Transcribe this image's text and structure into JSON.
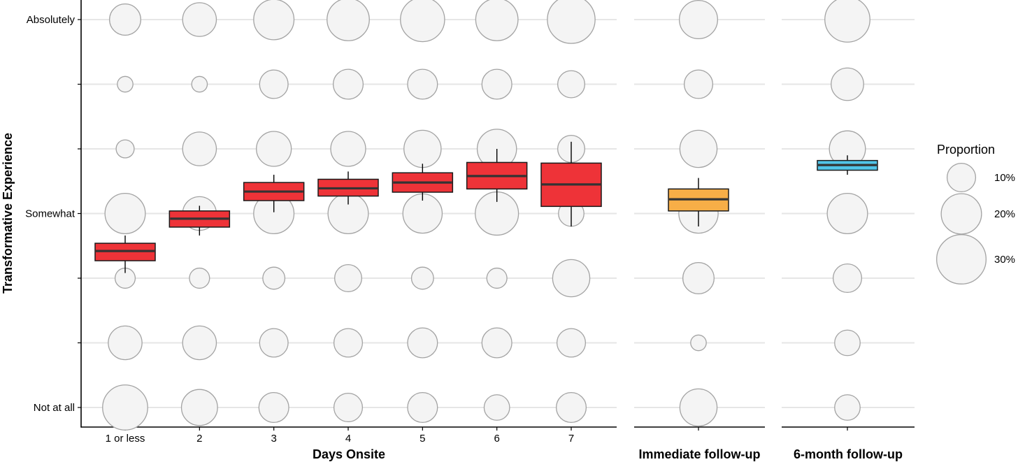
{
  "chart_data": {
    "type": "bubble-box",
    "ylabel": "Transformative Experience",
    "y_levels": 7,
    "y_tick_labels": {
      "1": "Not at all",
      "4": "Somewhat",
      "7": "Absolutely"
    },
    "legend": {
      "title": "Proportion",
      "entries": [
        {
          "label": "10%",
          "value": 10
        },
        {
          "label": "20%",
          "value": 20
        },
        {
          "label": "30%",
          "value": 30
        }
      ]
    },
    "panels": [
      {
        "id": "days",
        "xlabel": "Days Onsite",
        "box_color": "#ee3338",
        "categories": [
          {
            "label": "1 or less",
            "bubbles": [
              25,
              14,
              5,
              20,
              4,
              3,
              12
            ],
            "box": {
              "q1": 3.27,
              "median": 3.42,
              "q3": 3.54,
              "lo": 3.08,
              "hi": 3.66
            }
          },
          {
            "label": "2",
            "bubbles": [
              16,
              14,
              5,
              14,
              14,
              3,
              14
            ],
            "box": {
              "q1": 3.79,
              "median": 3.92,
              "q3": 4.04,
              "lo": 3.66,
              "hi": 4.12
            }
          },
          {
            "label": "3",
            "bubbles": [
              11,
              10,
              6,
              20,
              15,
              10,
              20
            ],
            "box": {
              "q1": 4.2,
              "median": 4.34,
              "q3": 4.48,
              "lo": 4.02,
              "hi": 4.6
            }
          },
          {
            "label": "4",
            "bubbles": [
              10,
              10,
              9,
              20,
              15,
              11,
              22
            ],
            "box": {
              "q1": 4.27,
              "median": 4.39,
              "q3": 4.53,
              "lo": 4.14,
              "hi": 4.65
            }
          },
          {
            "label": "5",
            "bubbles": [
              11,
              11,
              6,
              19,
              17,
              11,
              24
            ],
            "box": {
              "q1": 4.33,
              "median": 4.48,
              "q3": 4.63,
              "lo": 4.2,
              "hi": 4.77
            }
          },
          {
            "label": "6",
            "bubbles": [
              8,
              11,
              5,
              23,
              19,
              11,
              22
            ],
            "box": {
              "q1": 4.38,
              "median": 4.58,
              "q3": 4.79,
              "lo": 4.18,
              "hi": 5.0
            }
          },
          {
            "label": "7",
            "bubbles": [
              11,
              10,
              17,
              8,
              9,
              9,
              28
            ],
            "box": {
              "q1": 4.11,
              "median": 4.45,
              "q3": 4.78,
              "lo": 3.8,
              "hi": 5.11
            }
          }
        ]
      },
      {
        "id": "immediate",
        "xlabel": "Immediate follow-up",
        "box_color": "#f7ae47",
        "categories": [
          {
            "label": "",
            "bubbles": [
              17,
              3,
              12,
              19,
              17,
              10,
              18
            ],
            "box": {
              "q1": 4.04,
              "median": 4.22,
              "q3": 4.38,
              "lo": 3.8,
              "hi": 4.55
            }
          }
        ]
      },
      {
        "id": "sixmonth",
        "xlabel": "6-month follow-up",
        "box_color": "#51c4e8",
        "categories": [
          {
            "label": "",
            "bubbles": [
              8,
              8,
              10,
              20,
              16,
              13,
              25
            ],
            "box": {
              "q1": 4.67,
              "median": 4.75,
              "q3": 4.82,
              "lo": 4.6,
              "hi": 4.9
            }
          }
        ]
      }
    ]
  }
}
